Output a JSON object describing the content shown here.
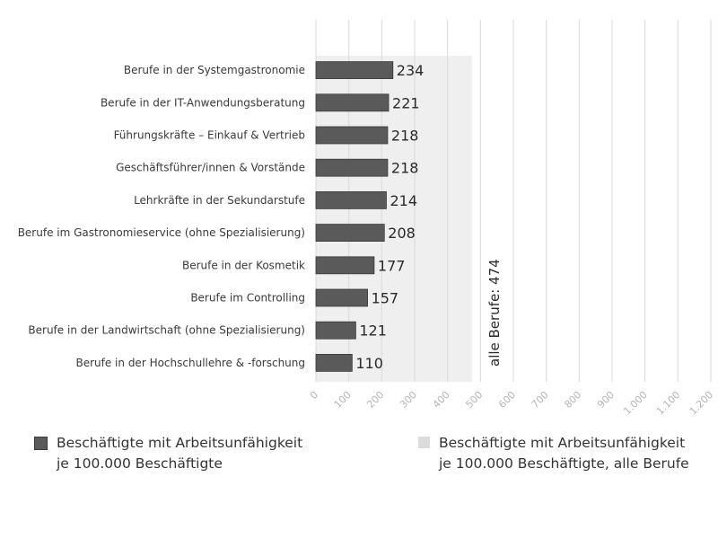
{
  "chart_data": {
    "type": "bar",
    "orientation": "horizontal",
    "categories": [
      "Berufe in der Systemgastronomie",
      "Berufe in der IT-Anwendungsberatung",
      "Führungskräfte – Einkauf & Vertrieb",
      "Geschäftsführer/innen & Vorstände",
      "Lehrkräfte in der Sekundarstufe",
      "Berufe im Gastronomieservice (ohne Spezialisierung)",
      "Berufe in der Kosmetik",
      "Berufe im Controlling",
      "Berufe in der Landwirtschaft (ohne Spezialisierung)",
      "Berufe in der Hochschullehre & -forschung"
    ],
    "series": [
      {
        "name": "Beschäftigte mit Arbeitsunfähigkeit je 100.000 Beschäftigte",
        "values": [
          234,
          221,
          218,
          218,
          214,
          208,
          177,
          157,
          121,
          110
        ],
        "color": "#5a5a5a"
      }
    ],
    "reference": {
      "name": "Beschäftigte mit Arbeitsunfähigkeit je 100.000 Beschäftigte, alle Berufe",
      "value": 474,
      "label": "alle Berufe: 474",
      "color": "#efefef"
    },
    "xlim": [
      0,
      1200
    ],
    "x_ticks": [
      0,
      100,
      200,
      300,
      400,
      500,
      600,
      700,
      800,
      900,
      1000,
      1100,
      1200
    ],
    "x_tick_labels": [
      "0",
      "100",
      "200",
      "300",
      "400",
      "500",
      "600",
      "700",
      "800",
      "900",
      "1.000",
      "1.100",
      "1.200"
    ],
    "grid": true,
    "legend_position": "bottom"
  },
  "legend": {
    "bar_line1": "Beschäftigte mit Arbeitsunfähigkeit",
    "bar_line2": "je 100.000 Beschäftigte",
    "ref_line1": "Beschäftigte mit Arbeitsunfähigkeit",
    "ref_line2": "je 100.000 Beschäftigte, alle Berufe"
  }
}
